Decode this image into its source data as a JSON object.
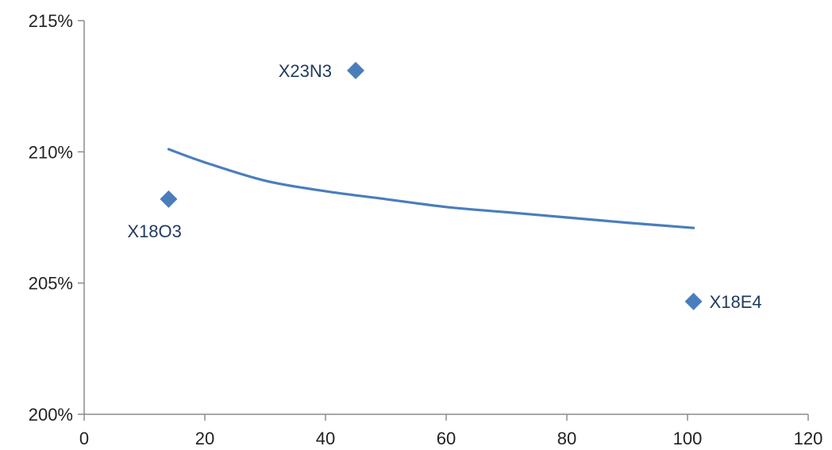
{
  "chart_data": {
    "type": "scatter",
    "title": "",
    "xlabel": "",
    "ylabel": "",
    "xlim": [
      0,
      120
    ],
    "ylim": [
      200,
      215
    ],
    "x_ticks": [
      0,
      20,
      40,
      60,
      80,
      100,
      120
    ],
    "x_tick_labels": [
      "0",
      "20",
      "40",
      "60",
      "80",
      "100",
      "120"
    ],
    "y_ticks": [
      200,
      205,
      210,
      215
    ],
    "y_tick_labels": [
      "200%",
      "205%",
      "210%",
      "215%"
    ],
    "grid": false,
    "legend": "none",
    "series": [
      {
        "marker": "diamond",
        "color": "#4a7ebb",
        "points": [
          {
            "label": "X18O3",
            "x": 14,
            "y": 208.2
          },
          {
            "label": "X23N3",
            "x": 45,
            "y": 213.1
          },
          {
            "label": "X18E4",
            "x": 101,
            "y": 204.3
          }
        ]
      }
    ],
    "trendline": {
      "type": "logarithmic",
      "color": "#4a7ebb",
      "x": [
        14,
        20,
        30,
        40,
        50,
        60,
        70,
        80,
        90,
        101
      ],
      "y": [
        210.1,
        209.6,
        208.9,
        208.5,
        208.2,
        207.9,
        207.7,
        207.5,
        207.3,
        207.1
      ]
    }
  }
}
